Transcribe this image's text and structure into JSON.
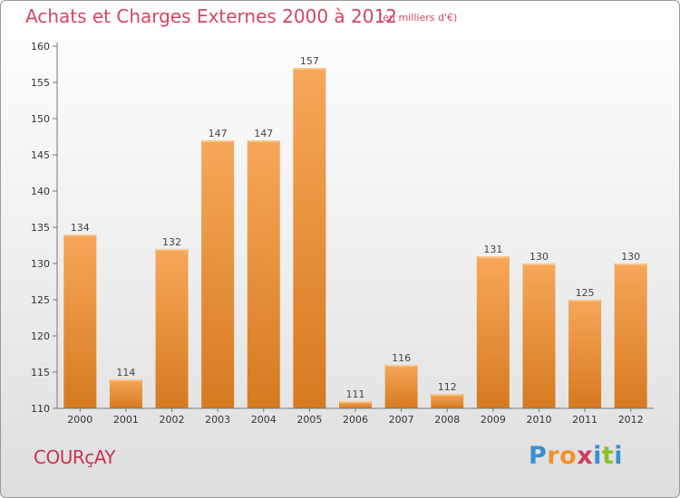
{
  "header": {
    "title": "Achats et Charges Externes 2000 à 2012",
    "subtitle": "(en milliers d'€)"
  },
  "footer": {
    "commune": "COURçAY",
    "logo": "Proxiti"
  },
  "colors": {
    "bar_light": "#f7a759",
    "bar_dark": "#d67a1f",
    "title": "#d24763",
    "axis": "#555555"
  },
  "chart_data": {
    "type": "bar",
    "title": "Achats et Charges Externes 2000 à 2012",
    "subtitle": "(en milliers d'€)",
    "categories": [
      "2000",
      "2001",
      "2002",
      "2003",
      "2004",
      "2005",
      "2006",
      "2007",
      "2008",
      "2009",
      "2010",
      "2011",
      "2012"
    ],
    "values": [
      134,
      114,
      132,
      147,
      147,
      157,
      111,
      116,
      112,
      131,
      130,
      125,
      130
    ],
    "ylim": [
      110,
      160
    ],
    "yticks": [
      110,
      115,
      120,
      125,
      130,
      135,
      140,
      145,
      150,
      155,
      160
    ],
    "grid": false,
    "legend": "none"
  }
}
